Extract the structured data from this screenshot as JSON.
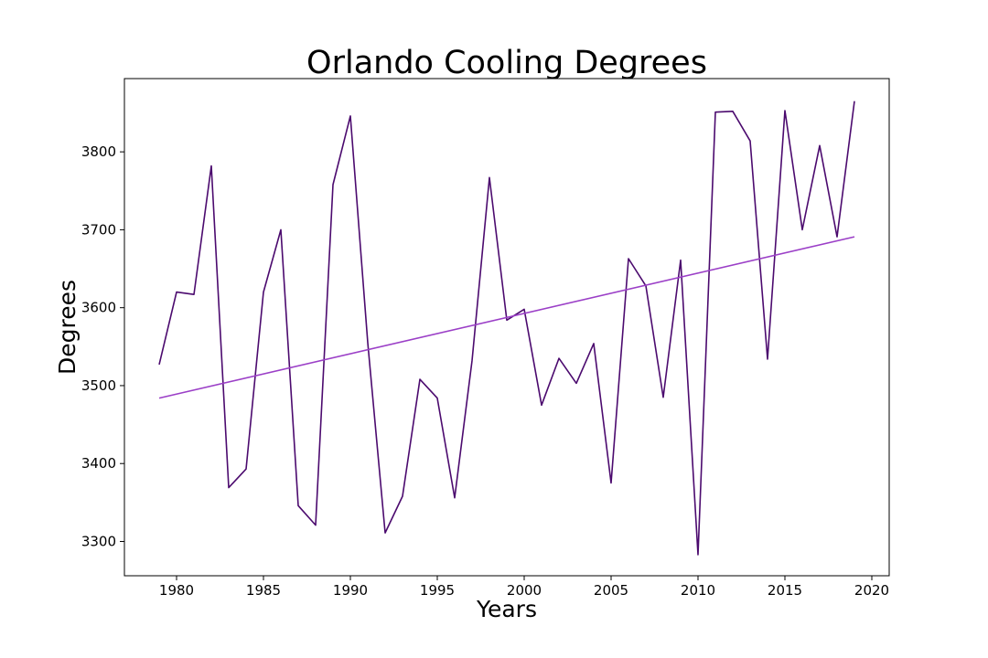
{
  "chart_data": {
    "type": "line",
    "title": "Orlando Cooling Degrees",
    "xlabel": "Years",
    "ylabel": "Degrees",
    "xlim": [
      1977,
      2021
    ],
    "ylim": [
      3256,
      3894
    ],
    "xticks": [
      1980,
      1985,
      1990,
      1995,
      2000,
      2005,
      2010,
      2015,
      2020
    ],
    "yticks": [
      3300,
      3400,
      3500,
      3600,
      3700,
      3800
    ],
    "grid": false,
    "series": [
      {
        "type": "line",
        "color": "#4b0a6e",
        "x": [
          1979,
          1980,
          1981,
          1982,
          1983,
          1984,
          1985,
          1986,
          1987,
          1988,
          1989,
          1990,
          1991,
          1992,
          1993,
          1994,
          1995,
          1996,
          1997,
          1998,
          1999,
          2000,
          2001,
          2002,
          2003,
          2004,
          2005,
          2006,
          2007,
          2008,
          2009,
          2010,
          2011,
          2012,
          2013,
          2014,
          2015,
          2016,
          2017,
          2018,
          2019
        ],
        "y": [
          3527,
          3620,
          3617,
          3782,
          3369,
          3393,
          3620,
          3700,
          3346,
          3321,
          3758,
          3846,
          3555,
          3311,
          3358,
          3508,
          3484,
          3356,
          3532,
          3767,
          3584,
          3598,
          3475,
          3535,
          3503,
          3554,
          3375,
          3663,
          3628,
          3485,
          3661,
          3283,
          3851,
          3852,
          3814,
          3534,
          3853,
          3700,
          3808,
          3691,
          3865
        ]
      },
      {
        "type": "line",
        "color": "#9b3fc7",
        "x": [
          1979,
          2019
        ],
        "y": [
          3484,
          3691
        ]
      }
    ]
  }
}
